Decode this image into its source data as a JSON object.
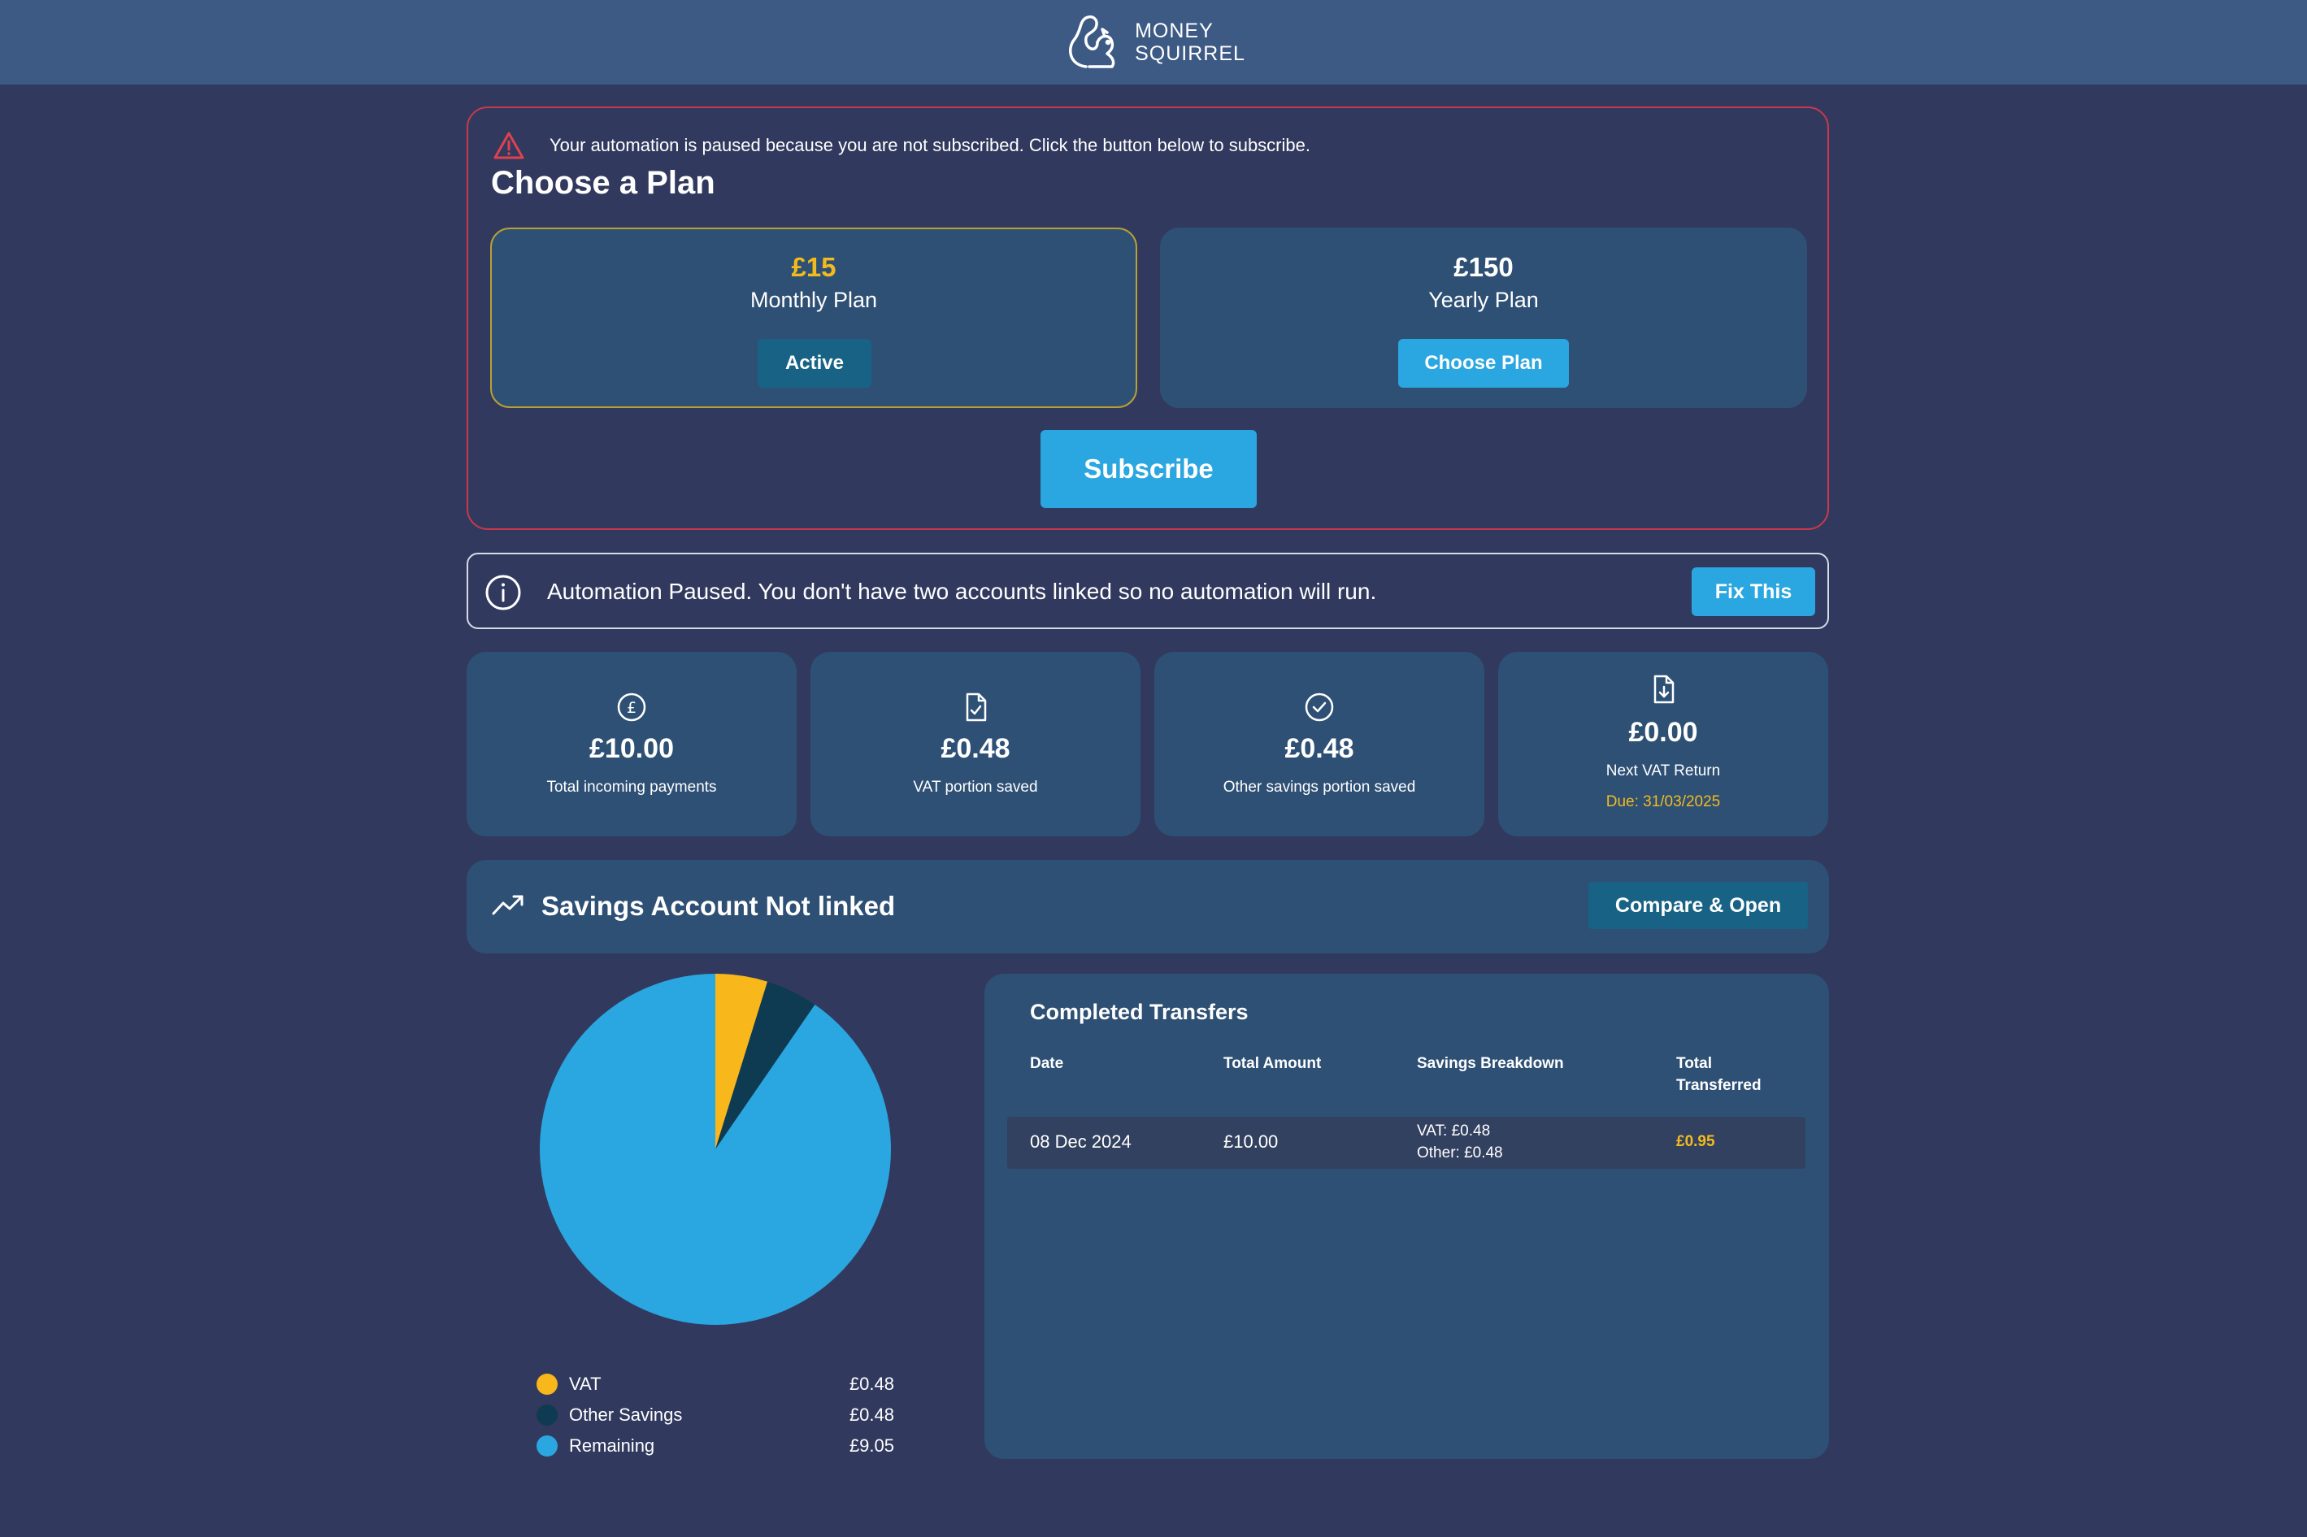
{
  "header": {
    "logo_line1": "MONEY",
    "logo_line2": "SQUIRREL"
  },
  "subscription": {
    "warning": "Your automation is paused because you are not subscribed. Click the button below to subscribe.",
    "title": "Choose a Plan",
    "plans": [
      {
        "price": "£15",
        "name": "Monthly Plan",
        "button": "Active"
      },
      {
        "price": "£150",
        "name": "Yearly Plan",
        "button": "Choose Plan"
      }
    ],
    "subscribe_label": "Subscribe"
  },
  "automation_notice": {
    "text": "Automation Paused. You don't have two accounts linked so no automation will run.",
    "button": "Fix This"
  },
  "stats": [
    {
      "icon": "pound-circle-icon",
      "value": "£10.00",
      "label": "Total incoming payments"
    },
    {
      "icon": "document-check-icon",
      "value": "£0.48",
      "label": "VAT portion saved"
    },
    {
      "icon": "check-circle-icon",
      "value": "£0.48",
      "label": "Other savings portion saved"
    },
    {
      "icon": "document-download-icon",
      "value": "£0.00",
      "label": "Next VAT Return",
      "due": "Due: 31/03/2025"
    }
  ],
  "savings": {
    "title": "Savings Account Not linked",
    "button": "Compare & Open"
  },
  "pie": {
    "legend": [
      {
        "label": "VAT",
        "value": "£0.48",
        "color": "#f8b71a"
      },
      {
        "label": "Other Savings",
        "value": "£0.48",
        "color": "#0e3b51"
      },
      {
        "label": "Remaining",
        "value": "£9.05",
        "color": "#2aa6e0"
      }
    ]
  },
  "chart_data": {
    "type": "pie",
    "categories": [
      "VAT",
      "Other Savings",
      "Remaining"
    ],
    "values": [
      0.48,
      0.48,
      9.05
    ],
    "colors": [
      "#f8b71a",
      "#0e3b51",
      "#2aa6e0"
    ],
    "legend": "bottom"
  },
  "transfers": {
    "title": "Completed Transfers",
    "headers": {
      "date": "Date",
      "amount": "Total Amount",
      "breakdown": "Savings Breakdown",
      "total_1": "Total",
      "total_2": "Transferred"
    },
    "rows": [
      {
        "date": "08 Dec 2024",
        "amount": "£10.00",
        "vat": "VAT: £0.48",
        "other": "Other: £0.48",
        "total": "£0.95"
      }
    ]
  },
  "colors": {
    "background": "#313a5e",
    "header": "#3d5a85",
    "card": "#2e5075",
    "accent": "#2aa6e0",
    "gold": "#f3ba1e",
    "danger": "#c9384e"
  }
}
